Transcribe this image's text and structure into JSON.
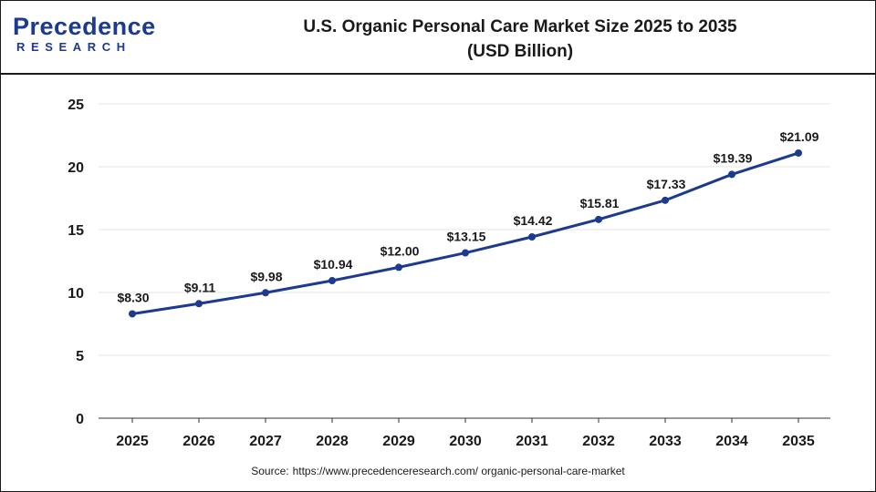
{
  "brand": {
    "logo_top": "recedence",
    "logo_bottom": "RESEARCH",
    "logo_initial": "P"
  },
  "title": {
    "line1": "U.S. Organic Personal Care Market Size 2025 to 2035",
    "line2": "(USD Billion)"
  },
  "source": {
    "label": "Source:",
    "url": "https://www.precedenceresearch.com/ organic-personal-care-market"
  },
  "colors": {
    "line": "#1c3a8f",
    "grid": "#e6e6e6",
    "axis": "#333333",
    "brand": "#1c3a8f"
  },
  "chart_data": {
    "type": "line",
    "title": "U.S. Organic Personal Care Market Size 2025 to 2035 (USD Billion)",
    "xlabel": "",
    "ylabel": "",
    "categories": [
      "2025",
      "2026",
      "2027",
      "2028",
      "2029",
      "2030",
      "2031",
      "2032",
      "2033",
      "2034",
      "2035"
    ],
    "series": [
      {
        "values": [
          8.3,
          9.11,
          9.98,
          10.94,
          12.0,
          13.15,
          14.42,
          15.81,
          17.33,
          19.39,
          21.09
        ],
        "labels": [
          "$8.30",
          "$9.11",
          "$9.98",
          "$10.94",
          "$12.00",
          "$13.15",
          "$14.42",
          "$15.81",
          "$17.33",
          "$19.39",
          "$21.09"
        ]
      }
    ],
    "ylim": [
      0,
      25
    ],
    "yticks": [
      "0",
      "5",
      "10",
      "15",
      "20",
      "25"
    ],
    "grid": true,
    "legend": "none"
  }
}
